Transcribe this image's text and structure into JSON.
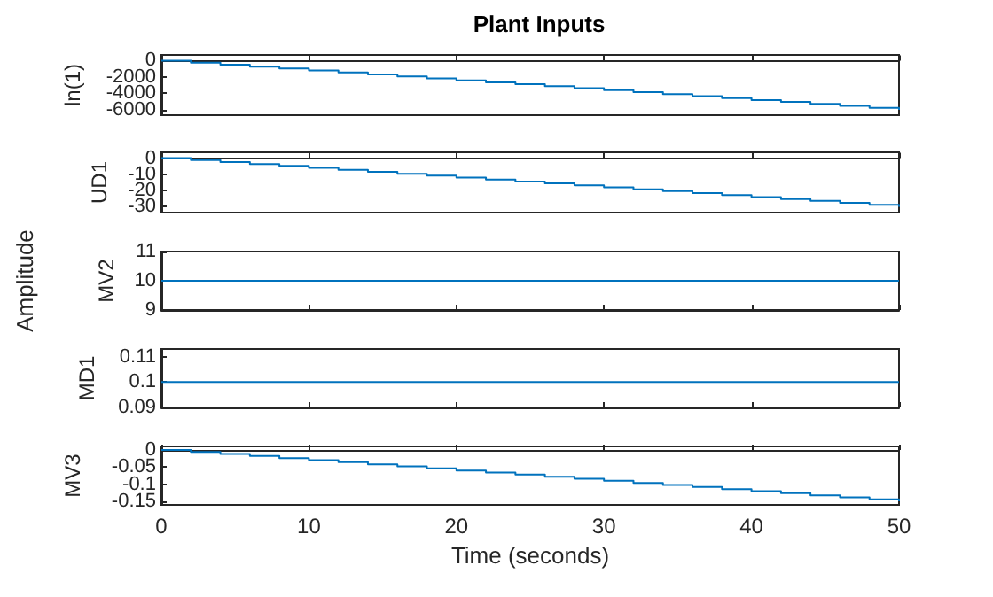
{
  "chart_data": [
    {
      "type": "step",
      "title": "Plant Inputs",
      "ylabel": "ln(1)",
      "tick_labels": "y",
      "xlim": [
        0,
        50
      ],
      "xticks": [
        0,
        10,
        20,
        30,
        40,
        50
      ],
      "ylim": [
        -6650,
        700
      ],
      "yticks": [
        -6000,
        -4000,
        -2000,
        0
      ],
      "x": [
        0,
        2,
        4,
        6,
        8,
        10,
        12,
        14,
        16,
        18,
        20,
        22,
        24,
        26,
        28,
        30,
        32,
        34,
        36,
        38,
        40,
        42,
        44,
        46,
        48,
        50
      ],
      "series": [
        {
          "color": "#0072bd",
          "values": [
            0,
            -240,
            -480,
            -720,
            -960,
            -1200,
            -1440,
            -1680,
            -1920,
            -2160,
            -2400,
            -2640,
            -2880,
            -3120,
            -3360,
            -3600,
            -3840,
            -4080,
            -4320,
            -4560,
            -4800,
            -5040,
            -5280,
            -5520,
            -5760,
            -6000
          ]
        }
      ]
    },
    {
      "type": "step",
      "ylabel": "UD1",
      "tick_labels": "y",
      "xlim": [
        0,
        50
      ],
      "xticks": [
        0,
        10,
        20,
        30,
        40,
        50
      ],
      "ylim": [
        -33.6,
        3.6
      ],
      "yticks": [
        -30,
        -20,
        -10,
        0
      ],
      "x": [
        0,
        2,
        4,
        6,
        8,
        10,
        12,
        14,
        16,
        18,
        20,
        22,
        24,
        26,
        28,
        30,
        32,
        34,
        36,
        38,
        40,
        42,
        44,
        46,
        48,
        50
      ],
      "series": [
        {
          "color": "#0072bd",
          "values": [
            0,
            -1.2,
            -2.4,
            -3.6,
            -4.8,
            -6,
            -7.2,
            -8.4,
            -9.6,
            -10.8,
            -12,
            -13.2,
            -14.4,
            -15.6,
            -16.8,
            -18,
            -19.2,
            -20.4,
            -21.6,
            -22.8,
            -24,
            -25.2,
            -26.4,
            -27.6,
            -28.8,
            -30
          ]
        }
      ]
    },
    {
      "type": "step",
      "ylabel": "MV2",
      "annotations": [
        "Amplitude"
      ],
      "tick_labels": "y",
      "xlim": [
        0,
        50
      ],
      "xticks": [
        0,
        10,
        20,
        30,
        40,
        50
      ],
      "ylim": [
        9,
        11
      ],
      "yticks": [
        9,
        10,
        11
      ],
      "x": [
        0,
        50
      ],
      "series": [
        {
          "color": "#0072bd",
          "values": [
            10,
            10
          ]
        }
      ]
    },
    {
      "type": "step",
      "ylabel": "MD1",
      "tick_labels": "y",
      "xlim": [
        0,
        50
      ],
      "xticks": [
        0,
        10,
        20,
        30,
        40,
        50
      ],
      "ylim": [
        0.09,
        0.113
      ],
      "yticks": [
        0.09,
        0.1,
        0.11
      ],
      "x": [
        0,
        50
      ],
      "series": [
        {
          "color": "#0072bd",
          "values": [
            0.1,
            0.1
          ]
        }
      ]
    },
    {
      "type": "step",
      "ylabel": "MV3",
      "xlabel": "Time (seconds)",
      "xlim": [
        0,
        50
      ],
      "xticks": [
        0,
        10,
        20,
        30,
        40,
        50
      ],
      "ylim": [
        -0.16,
        0.01
      ],
      "yticks": [
        -0.15,
        -0.1,
        -0.05,
        0
      ],
      "x": [
        0,
        2,
        4,
        6,
        8,
        10,
        12,
        14,
        16,
        18,
        20,
        22,
        24,
        26,
        28,
        30,
        32,
        34,
        36,
        38,
        40,
        42,
        44,
        46,
        48,
        50
      ],
      "series": [
        {
          "color": "#0072bd",
          "values": [
            0,
            -0.006,
            -0.012,
            -0.018,
            -0.024,
            -0.03,
            -0.036,
            -0.042,
            -0.048,
            -0.054,
            -0.06,
            -0.066,
            -0.072,
            -0.078,
            -0.084,
            -0.09,
            -0.096,
            -0.102,
            -0.108,
            -0.114,
            -0.12,
            -0.126,
            -0.132,
            -0.138,
            -0.144,
            -0.15
          ]
        }
      ]
    }
  ]
}
